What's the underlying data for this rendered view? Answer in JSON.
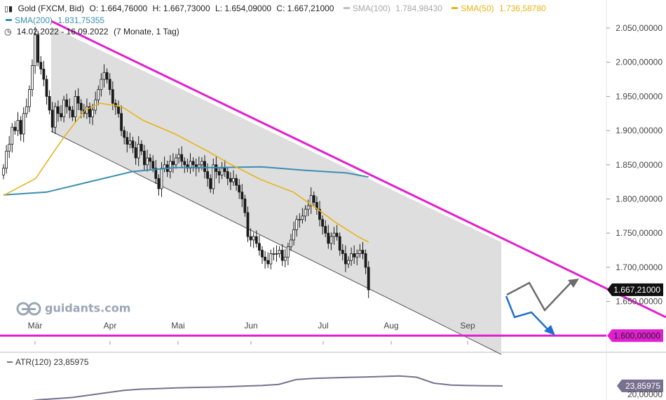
{
  "header": {
    "instrument": "Gold (FXCM, Bid)",
    "open": "O: 1.664,76000",
    "high": "H: 1.667,73000",
    "low": "L: 1.654,09000",
    "close": "C: 1.667,21000",
    "sma100_label": "SMA(100)",
    "sma100_value": "1.784,98430",
    "sma50_label": "SMA(50)",
    "sma50_value": "1.736,58780",
    "sma200_label": "SMA(200)",
    "sma200_value": "1.831,75355",
    "date_range": "14.02.2022 - 16.09.2022",
    "duration": "(7 Monate, 1 Tag)"
  },
  "logo": {
    "text": "guidants.com"
  },
  "colors": {
    "candle": "#1a1a1a",
    "sma50": "#e6b417",
    "sma200": "#3a8fb0",
    "trendline": "#e020d0",
    "channel_fill": "#dedede",
    "forecast_gray": "#6b6b6b",
    "forecast_blue": "#1f6fd1",
    "atr": "#77718f"
  },
  "chart_data": {
    "type": "candlestick",
    "title": "Gold (FXCM, Bid)",
    "period": "14.02.2022 - 16.09.2022",
    "months": [
      "Mär",
      "Apr",
      "Mai",
      "Jun",
      "Jul",
      "Aug",
      "Sep"
    ],
    "y_ticks": [
      "2.050,00000",
      "2.000,00000",
      "1.950,00000",
      "1.900,00000",
      "1.850,00000",
      "1.800,00000",
      "1.750,00000",
      "1.700,00000",
      "1.650,00000"
    ],
    "ylim": [
      1600,
      2070
    ],
    "last_price": 1667.21,
    "last_price_label": "1.667,21000",
    "support_level": 1600,
    "support_label": "1.600,00000",
    "close_series": [
      1845,
      1870,
      1880,
      1905,
      1900,
      1915,
      1895,
      1925,
      1935,
      1960,
      1995,
      2040,
      2000,
      1990,
      1975,
      1950,
      1930,
      1905,
      1935,
      1925,
      1920,
      1945,
      1935,
      1930,
      1920,
      1950,
      1940,
      1930,
      1925,
      1935,
      1920,
      1930,
      1945,
      1960,
      1975,
      1985,
      1975,
      1960,
      1940,
      1935,
      1925,
      1900,
      1890,
      1880,
      1885,
      1875,
      1860,
      1880,
      1870,
      1850,
      1860,
      1855,
      1845,
      1830,
      1815,
      1845,
      1850,
      1840,
      1855,
      1850,
      1860,
      1865,
      1855,
      1850,
      1845,
      1855,
      1850,
      1845,
      1850,
      1855,
      1840,
      1830,
      1815,
      1850,
      1840,
      1835,
      1845,
      1840,
      1830,
      1825,
      1830,
      1820,
      1810,
      1800,
      1780,
      1745,
      1740,
      1745,
      1735,
      1725,
      1715,
      1710,
      1705,
      1720,
      1720,
      1720,
      1725,
      1710,
      1715,
      1730,
      1740,
      1755,
      1770,
      1770,
      1775,
      1785,
      1790,
      1805,
      1795,
      1785,
      1770,
      1760,
      1750,
      1735,
      1745,
      1750,
      1745,
      1725,
      1720,
      1705,
      1710,
      1720,
      1715,
      1720,
      1725,
      1720,
      1700,
      1667
    ],
    "sma50": [
      {
        "d": 0,
        "v": 1805
      },
      {
        "d": 15,
        "v": 1830
      },
      {
        "d": 28,
        "v": 1890
      },
      {
        "d": 38,
        "v": 1930
      },
      {
        "d": 45,
        "v": 1940
      },
      {
        "d": 55,
        "v": 1935
      },
      {
        "d": 65,
        "v": 1915
      },
      {
        "d": 80,
        "v": 1895
      },
      {
        "d": 95,
        "v": 1870
      },
      {
        "d": 105,
        "v": 1852
      },
      {
        "d": 120,
        "v": 1828
      },
      {
        "d": 135,
        "v": 1810
      },
      {
        "d": 145,
        "v": 1788
      },
      {
        "d": 155,
        "v": 1765
      },
      {
        "d": 165,
        "v": 1745
      },
      {
        "d": 170,
        "v": 1737
      }
    ],
    "sma200": [
      {
        "d": 0,
        "v": 1806
      },
      {
        "d": 20,
        "v": 1810
      },
      {
        "d": 40,
        "v": 1825
      },
      {
        "d": 60,
        "v": 1840
      },
      {
        "d": 80,
        "v": 1846
      },
      {
        "d": 100,
        "v": 1846
      },
      {
        "d": 120,
        "v": 1847
      },
      {
        "d": 140,
        "v": 1842
      },
      {
        "d": 160,
        "v": 1838
      },
      {
        "d": 170,
        "v": 1832
      }
    ],
    "atr": {
      "label": "ATR(120)",
      "value": "23,85975",
      "ytick": "20,00000",
      "series": [
        16,
        17,
        18,
        18.5,
        19,
        20,
        21,
        22,
        22.5,
        22.7,
        23,
        23.2,
        23.3,
        23.5,
        23.8,
        24,
        24.5,
        26.5,
        27,
        27.2,
        27.4,
        27.6,
        27.8,
        28,
        27.5,
        25,
        24.2,
        24,
        23.9,
        23.86
      ]
    }
  }
}
